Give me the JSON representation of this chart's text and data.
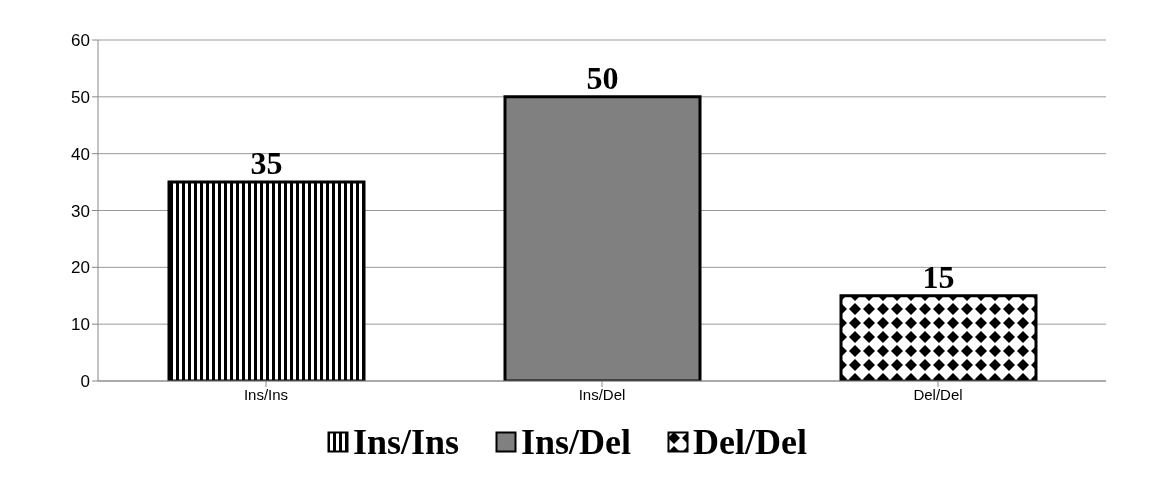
{
  "chart_data": {
    "type": "bar",
    "categories": [
      "Ins/Ins",
      "Ins/Del",
      "Del/Del"
    ],
    "series": [
      {
        "name": "Ins/Ins",
        "color": "#000000",
        "values": [
          35,
          null,
          null
        ]
      },
      {
        "name": "Ins/Del",
        "color": "#808080",
        "values": [
          null,
          50,
          null
        ]
      },
      {
        "name": "Del/Del",
        "color": "#000000",
        "values": [
          null,
          null,
          15
        ]
      }
    ],
    "stacked": true,
    "ylim": [
      0,
      60
    ],
    "yticks": [
      0,
      10,
      20,
      30,
      40,
      50,
      60
    ],
    "grid": "y",
    "legend": "bottom",
    "data_labels": true
  }
}
